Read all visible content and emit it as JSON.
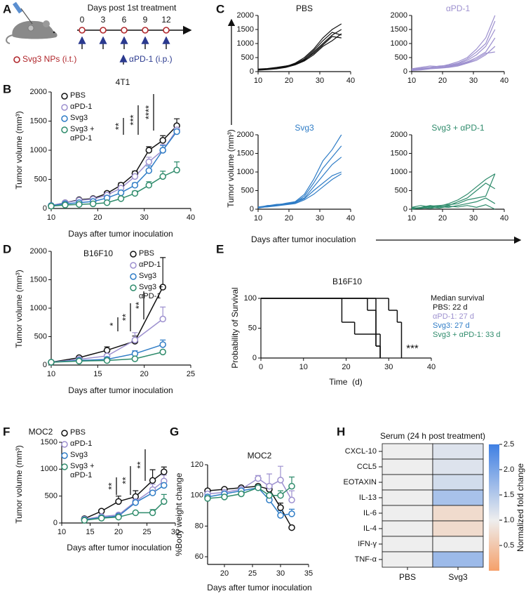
{
  "schematic": {
    "label": "A",
    "title": "Days post 1st treatment",
    "days": [
      0,
      3,
      6,
      9,
      12
    ],
    "legend": [
      "Svg3 NPs (i.t.)",
      "αPD-1 (i.p.)"
    ]
  },
  "chart_data": [
    {
      "type": "line",
      "label": "B",
      "title": "4T1",
      "xlabel": "Days after tumor inoculation",
      "ylabel": "Tumor volume (mm³)",
      "x": [
        10,
        13,
        16,
        19,
        22,
        25,
        28,
        31,
        34,
        37
      ],
      "xlim": [
        10,
        40
      ],
      "xticks": [
        10,
        20,
        30,
        40
      ],
      "ylim": [
        0,
        2000
      ],
      "yticks": [
        0,
        500,
        1000,
        1500,
        2000
      ],
      "series": [
        {
          "name": "PBS",
          "color": "#111111",
          "values": [
            50,
            100,
            150,
            170,
            260,
            400,
            600,
            1000,
            1170,
            1420
          ],
          "errors": [
            10,
            15,
            20,
            20,
            30,
            40,
            40,
            60,
            80,
            120
          ]
        },
        {
          "name": "αPD-1",
          "color": "#9d90cf",
          "values": [
            50,
            100,
            140,
            160,
            230,
            350,
            550,
            800,
            1000,
            1350
          ],
          "errors": [
            10,
            10,
            20,
            20,
            30,
            40,
            50,
            80,
            100,
            100
          ]
        },
        {
          "name": "Svg3",
          "color": "#2e7cc6",
          "values": [
            50,
            80,
            100,
            120,
            180,
            270,
            400,
            650,
            1000,
            1320
          ],
          "errors": [
            10,
            10,
            15,
            15,
            20,
            30,
            40,
            80,
            80,
            80
          ]
        },
        {
          "name": "Svg3 + αPD-1",
          "color": "#2e8b6b",
          "values": [
            40,
            60,
            70,
            80,
            100,
            170,
            260,
            400,
            550,
            660
          ],
          "errors": [
            10,
            10,
            10,
            10,
            20,
            30,
            40,
            60,
            90,
            140
          ]
        }
      ],
      "annotations": [
        "**",
        "***",
        "****"
      ]
    },
    {
      "type": "small_multiples",
      "label": "C",
      "xlabel": "Days after tumor inoculation",
      "ylabel": "Tumor volume (mm³)",
      "x": [
        10,
        13,
        16,
        19,
        22,
        25,
        28,
        31,
        34,
        37
      ],
      "xlim": [
        10,
        40
      ],
      "xticks": [
        10,
        20,
        30,
        40
      ],
      "ylim": [
        0,
        2000
      ],
      "yticks": [
        0,
        500,
        1000,
        1500,
        2000
      ],
      "panels": [
        {
          "title": "PBS",
          "color": "#111111",
          "series": [
            {
              "values": [
                80,
                100,
                140,
                180,
                300,
                500,
                800,
                1200,
                1500,
                1700
              ]
            },
            {
              "values": [
                60,
                90,
                120,
                170,
                280,
                450,
                750,
                1100,
                1400,
                1300
              ]
            },
            {
              "values": [
                90,
                110,
                150,
                200,
                260,
                400,
                700,
                1000,
                1300,
                1500
              ]
            },
            {
              "values": [
                70,
                80,
                130,
                160,
                250,
                420,
                650,
                950,
                1250,
                1200
              ]
            },
            {
              "values": [
                50,
                70,
                100,
                150,
                240,
                380,
                600,
                900,
                1100,
                1350
              ]
            }
          ]
        },
        {
          "title": "αPD-1",
          "color": "#9d90cf",
          "series": [
            {
              "values": [
                100,
                150,
                200,
                180,
                250,
                350,
                500,
                800,
                1200,
                2000
              ]
            },
            {
              "values": [
                80,
                120,
                150,
                200,
                220,
                300,
                450,
                700,
                1000,
                1800
              ]
            },
            {
              "values": [
                60,
                100,
                130,
                160,
                200,
                280,
                400,
                600,
                900,
                1500
              ]
            },
            {
              "values": [
                50,
                80,
                120,
                150,
                180,
                250,
                350,
                500,
                700,
                1200
              ]
            },
            {
              "values": [
                40,
                60,
                100,
                120,
                150,
                200,
                300,
                400,
                600,
                900
              ]
            },
            {
              "values": [
                70,
                90,
                110,
                140,
                170,
                230,
                320,
                450,
                650,
                700
              ]
            }
          ]
        },
        {
          "title": "Svg3",
          "color": "#2e7cc6",
          "series": [
            {
              "values": [
                50,
                80,
                120,
                150,
                200,
                400,
                800,
                1300,
                1600,
                2000
              ]
            },
            {
              "values": [
                60,
                90,
                130,
                140,
                180,
                350,
                700,
                1100,
                1400,
                1700
              ]
            },
            {
              "values": [
                40,
                100,
                110,
                160,
                200,
                300,
                600,
                900,
                1200,
                1400
              ]
            },
            {
              "values": [
                30,
                70,
                100,
                130,
                170,
                280,
                500,
                700,
                900,
                1000
              ]
            },
            {
              "values": [
                50,
                60,
                90,
                120,
                150,
                250,
                400,
                600,
                800,
                950
              ]
            }
          ]
        },
        {
          "title": "Svg3 + αPD-1",
          "color": "#2e8b6b",
          "series": [
            {
              "values": [
                50,
                100,
                60,
                80,
                150,
                250,
                400,
                600,
                800,
                950
              ]
            },
            {
              "values": [
                20,
                50,
                100,
                60,
                100,
                200,
                300,
                500,
                700,
                550
              ]
            },
            {
              "values": [
                40,
                30,
                80,
                100,
                120,
                150,
                250,
                300,
                350,
                950
              ]
            },
            {
              "values": [
                0,
                40,
                20,
                60,
                50,
                100,
                150,
                200,
                300,
                150
              ]
            },
            {
              "values": [
                30,
                20,
                50,
                30,
                80,
                60,
                100,
                50,
                120,
                0
              ]
            }
          ]
        }
      ]
    },
    {
      "type": "line",
      "label": "D",
      "title": "B16F10",
      "xlabel": "Days after tumor inoculation",
      "ylabel": "Tumor volume (mm³)",
      "x": [
        10,
        13,
        16,
        19,
        22
      ],
      "xlim": [
        10,
        25
      ],
      "xticks": [
        10,
        15,
        20,
        25
      ],
      "ylim": [
        0,
        2000
      ],
      "yticks": [
        0,
        500,
        1000,
        1500,
        2000
      ],
      "series": [
        {
          "name": "PBS",
          "color": "#111111",
          "values": [
            50,
            130,
            260,
            420,
            1370
          ],
          "errors": [
            5,
            20,
            60,
            90,
            520
          ]
        },
        {
          "name": "αPD-1",
          "color": "#9d90cf",
          "values": [
            50,
            100,
            160,
            440,
            810
          ],
          "errors": [
            5,
            10,
            30,
            130,
            210
          ]
        },
        {
          "name": "Svg3",
          "color": "#2e7cc6",
          "values": [
            50,
            80,
            100,
            200,
            360
          ],
          "errors": [
            5,
            10,
            20,
            50,
            80
          ]
        },
        {
          "name": "Svg3 + αPD-1",
          "color": "#2e8b6b",
          "values": [
            50,
            70,
            80,
            110,
            230
          ],
          "errors": [
            5,
            5,
            10,
            20,
            20
          ]
        }
      ],
      "annotations": [
        "*",
        "**",
        "**"
      ]
    },
    {
      "type": "step",
      "label": "E",
      "title": "B16F10",
      "xlabel": "Time  (d)",
      "ylabel": "Probability of Survival",
      "xlim": [
        0,
        40
      ],
      "xticks": [
        0,
        10,
        20,
        30,
        40
      ],
      "ylim": [
        0,
        100
      ],
      "yticks": [
        0,
        50,
        100
      ],
      "legend_title": "Median survival",
      "series": [
        {
          "name": "PBS: 22 d",
          "color": "#111111",
          "x": [
            0,
            19,
            22,
            27,
            28
          ],
          "values": [
            100,
            60,
            40,
            20,
            0
          ]
        },
        {
          "name": "αPD-1: 27 d",
          "color": "#9d90cf",
          "x": [
            0,
            25,
            27,
            28
          ],
          "values": [
            100,
            80,
            20,
            0
          ]
        },
        {
          "name": "Svg3: 27 d",
          "color": "#2e7cc6",
          "x": [
            0,
            27,
            28
          ],
          "values": [
            100,
            40,
            0
          ]
        },
        {
          "name": "Svg3 + αPD-1: 33 d",
          "color": "#2e8b6b",
          "x": [
            0,
            30,
            32,
            33
          ],
          "values": [
            100,
            80,
            60,
            0
          ]
        }
      ],
      "annotations": [
        "***"
      ]
    },
    {
      "type": "line",
      "label": "F",
      "title": "MOC2",
      "xlabel": "Days after tumor inoculation",
      "ylabel": "Tumor volume (mm³)",
      "x": [
        14,
        17,
        20,
        23,
        26,
        28
      ],
      "xlim": [
        10,
        30
      ],
      "xticks": [
        10,
        15,
        20,
        25,
        30
      ],
      "ylim": [
        0,
        1500
      ],
      "yticks": [
        0,
        500,
        1000,
        1500
      ],
      "series": [
        {
          "name": "PBS",
          "color": "#111111",
          "values": [
            80,
            220,
            400,
            490,
            790,
            950
          ],
          "errors": [
            10,
            30,
            100,
            110,
            200,
            90
          ]
        },
        {
          "name": "αPD-1",
          "color": "#9d90cf",
          "values": [
            70,
            120,
            150,
            400,
            620,
            780
          ],
          "errors": [
            10,
            20,
            30,
            40,
            100,
            110
          ]
        },
        {
          "name": "Svg3",
          "color": "#2e7cc6",
          "values": [
            60,
            100,
            130,
            380,
            560,
            700
          ],
          "errors": [
            10,
            15,
            20,
            30,
            80,
            80
          ]
        },
        {
          "name": "Svg3 + αPD-1",
          "color": "#2e8b6b",
          "values": [
            50,
            90,
            110,
            190,
            190,
            400
          ],
          "errors": [
            10,
            10,
            15,
            20,
            60,
            130
          ]
        }
      ],
      "annotations": [
        "**",
        "**",
        "**"
      ]
    },
    {
      "type": "line",
      "label": "G",
      "title": "MOC2",
      "xlabel": "Days after tumor inoculation",
      "ylabel": "%Body weight change",
      "x": [
        17,
        20,
        23,
        26,
        28,
        30,
        32
      ],
      "xlim": [
        17,
        35
      ],
      "xticks": [
        20,
        25,
        30,
        35
      ],
      "ylim": [
        55,
        120
      ],
      "yticks": [
        60,
        80,
        100,
        120
      ],
      "series": [
        {
          "color": "#111111",
          "values": [
            103,
            104,
            105,
            106,
            104,
            92,
            79
          ],
          "errors": [
            1,
            1,
            1,
            1,
            2,
            3,
            1
          ]
        },
        {
          "color": "#9d90cf",
          "values": [
            101,
            102,
            104,
            111,
            106,
            110,
            97
          ],
          "errors": [
            1,
            1,
            1,
            2,
            8,
            9,
            6
          ]
        },
        {
          "color": "#2e7cc6",
          "values": [
            99,
            101,
            103,
            105,
            97,
            87,
            88
          ],
          "errors": [
            1,
            1,
            1,
            2,
            2,
            3,
            3
          ]
        },
        {
          "color": "#2e8b6b",
          "values": [
            98,
            99,
            101,
            105,
            100,
            100,
            106
          ],
          "errors": [
            1,
            1,
            1,
            2,
            5,
            3,
            6
          ]
        }
      ]
    },
    {
      "type": "heatmap",
      "label": "H",
      "title": "Serum (24 h post treatment)",
      "rows": [
        "CXCL-10",
        "CCL5",
        "EOTAXIN",
        "IL-13",
        "IL-6",
        "IL-4",
        "IFN-γ",
        "TNF-α"
      ],
      "columns": [
        "PBS",
        "Svg3"
      ],
      "values": [
        [
          1,
          1.15
        ],
        [
          1,
          1.15
        ],
        [
          1,
          1.25
        ],
        [
          1,
          1.6
        ],
        [
          1,
          0.75
        ],
        [
          1,
          0.75
        ],
        [
          1,
          1
        ],
        [
          1,
          1.7
        ]
      ],
      "clim": [
        0,
        2.5
      ],
      "cticks": [
        {
          "value": 0.5,
          "label": "0.5"
        },
        {
          "value": 1,
          "label": "1.0"
        },
        {
          "value": 1.5,
          "label": "1.5"
        },
        {
          "value": 2,
          "label": "2.0"
        },
        {
          "value": 2.5,
          "label": "2.5"
        }
      ],
      "color_stops": [
        {
          "value": 0,
          "color": "#f5a06a"
        },
        {
          "value": 1,
          "color": "#eeeeee"
        },
        {
          "value": 2.5,
          "color": "#3f7fe3"
        }
      ],
      "colorbar_label": "Normalized fold change"
    }
  ]
}
